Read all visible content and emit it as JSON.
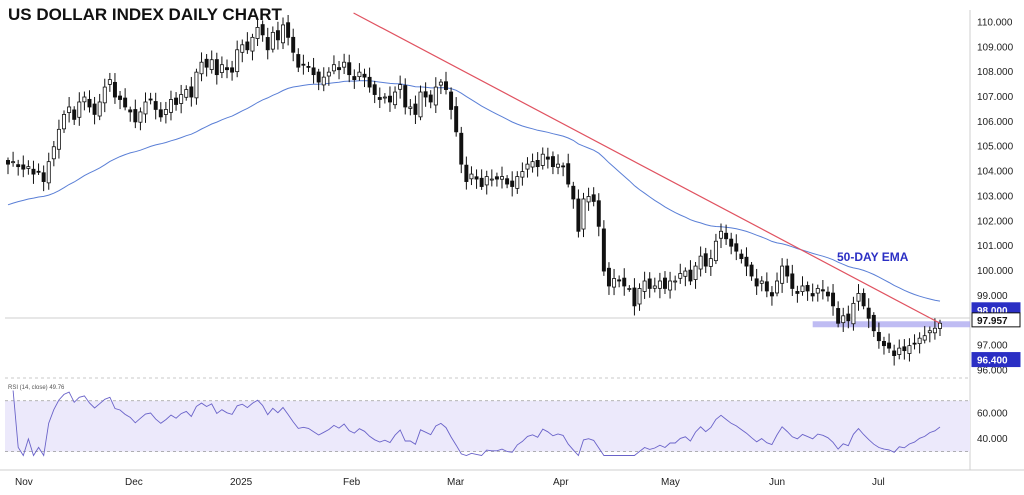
{
  "chart_data": {
    "type": "candlestick",
    "title": "US DOLLAR INDEX DAILY CHART",
    "price_axis": {
      "ylim": [
        95.9,
        110.5
      ],
      "ticks": [
        "110.000",
        "109.000",
        "108.000",
        "107.000",
        "106.000",
        "105.000",
        "104.000",
        "103.000",
        "102.000",
        "101.000",
        "100.000",
        "99.000",
        "97.000",
        "96.000"
      ]
    },
    "x_labels": [
      "Nov",
      "Dec",
      "2025",
      "Feb",
      "Mar",
      "Apr",
      "May",
      "Jun",
      "Jul"
    ],
    "tagged_levels": [
      {
        "label": "98.000",
        "value": 98.0,
        "color": "#2b2fc4"
      },
      {
        "label": "97.957",
        "value": 97.957,
        "color": "#111111"
      },
      {
        "label": "96.400",
        "value": 96.4,
        "color": "#2b2fc4"
      }
    ],
    "support_zones": [
      {
        "value": 97.86,
        "from_x": 158,
        "to_x": 229
      },
      {
        "value": 96.4,
        "from_x": 213,
        "to_x": 229
      }
    ],
    "annotation": "50-DAY EMA",
    "closes": [
      104.3,
      104.4,
      104.2,
      104.1,
      104.2,
      103.9,
      104.0,
      103.6,
      104.4,
      105.0,
      105.7,
      106.3,
      106.6,
      106.1,
      106.8,
      107.0,
      106.6,
      106.3,
      106.8,
      107.4,
      107.7,
      107.0,
      106.9,
      106.6,
      106.4,
      106.0,
      106.4,
      106.8,
      106.9,
      106.5,
      106.2,
      106.5,
      106.9,
      106.7,
      107.1,
      107.3,
      107.0,
      108.0,
      108.4,
      108.2,
      108.5,
      107.9,
      108.3,
      108.1,
      108.0,
      108.9,
      109.1,
      108.9,
      109.4,
      109.8,
      109.5,
      108.9,
      109.6,
      109.3,
      109.9,
      109.4,
      108.8,
      108.2,
      108.3,
      108.2,
      107.9,
      107.6,
      107.8,
      108.0,
      108.3,
      108.1,
      108.4,
      107.9,
      107.7,
      108.0,
      107.8,
      107.4,
      107.1,
      106.9,
      107.0,
      106.8,
      107.2,
      107.5,
      106.6,
      106.6,
      106.3,
      107.2,
      107.0,
      106.8,
      107.4,
      107.6,
      107.3,
      106.5,
      105.6,
      104.3,
      103.6,
      103.9,
      103.7,
      103.4,
      103.8,
      103.7,
      103.7,
      103.8,
      103.5,
      103.4,
      103.8,
      104.0,
      104.3,
      104.4,
      104.2,
      104.7,
      104.5,
      104.2,
      104.3,
      104.2,
      103.5,
      102.9,
      101.6,
      102.9,
      103.0,
      102.8,
      101.8,
      100.0,
      99.4,
      99.7,
      99.6,
      99.4,
      99.3,
      98.6,
      99.3,
      99.6,
      99.3,
      99.4,
      99.6,
      99.3,
      99.6,
      99.6,
      99.9,
      100.0,
      99.6,
      100.2,
      100.6,
      100.2,
      100.5,
      101.2,
      101.6,
      101.3,
      101.0,
      100.8,
      100.5,
      100.2,
      99.8,
      99.4,
      99.6,
      99.2,
      99.0,
      99.6,
      100.2,
      99.8,
      99.3,
      99.1,
      99.4,
      99.2,
      99.0,
      99.3,
      99.2,
      99.0,
      98.6,
      97.9,
      98.2,
      98.0,
      98.7,
      99.1,
      98.6,
      98.1,
      97.6,
      97.2,
      97.0,
      96.9,
      96.6,
      96.9,
      96.8,
      97.0,
      97.1,
      97.3,
      97.4,
      97.6,
      97.7,
      97.9
    ],
    "series": [
      {
        "name": "50-DAY EMA",
        "kind": "line",
        "color": "#5a7fd6"
      },
      {
        "name": "RSI (14, close) 49.76",
        "kind": "line",
        "color": "#6a63c9"
      }
    ],
    "rsi_panel": {
      "label": "RSI (14, close)",
      "value": "49.76",
      "ylim": [
        25,
        80
      ],
      "band": [
        30,
        70
      ],
      "ticks": [
        "60.000",
        "40.000"
      ]
    },
    "trendline_color": "#e05260"
  }
}
